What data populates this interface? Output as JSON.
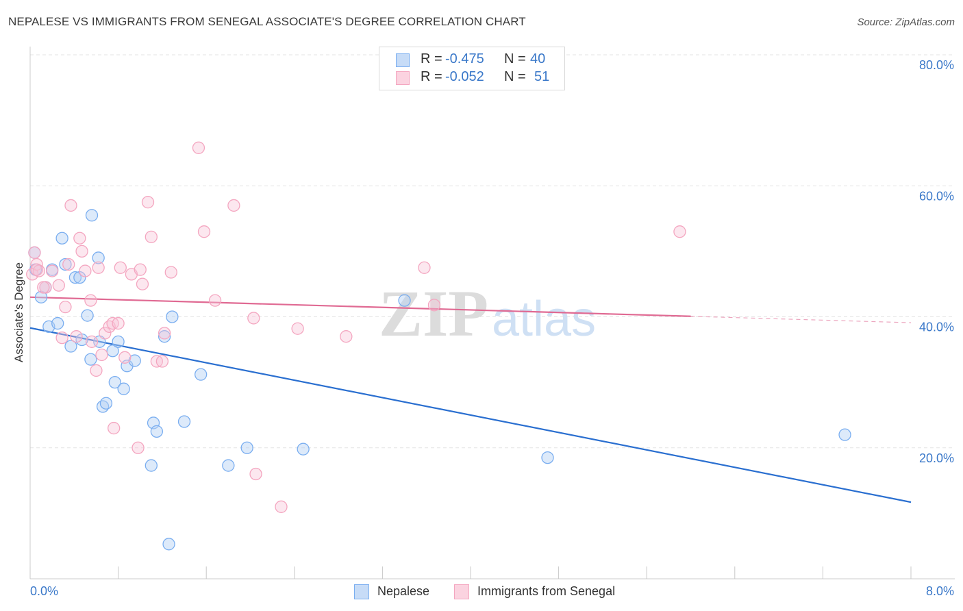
{
  "title": "NEPALESE VS IMMIGRANTS FROM SENEGAL ASSOCIATE'S DEGREE CORRELATION CHART",
  "source": "Source: ZipAtlas.com",
  "watermark": {
    "zip": "ZIP",
    "atlas": "atlas"
  },
  "legend": {
    "rows": [
      {
        "r_label": "R =",
        "r_value": "-0.475",
        "n_label": "N =",
        "n_value": "40",
        "color": "#7aaef0"
      },
      {
        "r_label": "R =",
        "r_value": "-0.052",
        "n_label": "N =",
        "n_value": "51",
        "color": "#f4a6c0"
      }
    ]
  },
  "chart_data": {
    "type": "scatter",
    "title": "NEPALESE VS IMMIGRANTS FROM SENEGAL ASSOCIATE'S DEGREE CORRELATION CHART",
    "xlabel": "",
    "ylabel": "Associate's Degree",
    "xlim": [
      0,
      8
    ],
    "ylim": [
      0,
      80
    ],
    "x_ticks": [
      "0.0%",
      "8.0%"
    ],
    "y_ticks": [
      "20.0%",
      "40.0%",
      "60.0%",
      "80.0%"
    ],
    "y_tick_values": [
      20,
      40,
      60,
      80
    ],
    "grid": true,
    "legend_position": "top-center",
    "series": [
      {
        "name": "Nepalese",
        "color": "#7aaef0",
        "line_color": "#2a6fd0",
        "trend": {
          "x": [
            0,
            8
          ],
          "y": [
            38.3,
            11.7
          ],
          "dashed_from": null
        },
        "points": [
          [
            0.04,
            49.8
          ],
          [
            0.05,
            47.2
          ],
          [
            0.1,
            43.0
          ],
          [
            0.14,
            44.5
          ],
          [
            0.17,
            38.5
          ],
          [
            0.2,
            47.2
          ],
          [
            0.25,
            39.0
          ],
          [
            0.29,
            52.0
          ],
          [
            0.32,
            48.0
          ],
          [
            0.37,
            35.5
          ],
          [
            0.41,
            46.0
          ],
          [
            0.45,
            46.0
          ],
          [
            0.47,
            36.5
          ],
          [
            0.52,
            40.2
          ],
          [
            0.55,
            33.5
          ],
          [
            0.56,
            55.5
          ],
          [
            0.62,
            49.0
          ],
          [
            0.63,
            36.2
          ],
          [
            0.66,
            26.3
          ],
          [
            0.69,
            26.8
          ],
          [
            0.75,
            34.8
          ],
          [
            0.77,
            30.0
          ],
          [
            0.8,
            36.2
          ],
          [
            0.85,
            29.0
          ],
          [
            0.88,
            32.5
          ],
          [
            0.95,
            33.3
          ],
          [
            1.1,
            17.3
          ],
          [
            1.12,
            23.8
          ],
          [
            1.15,
            22.5
          ],
          [
            1.22,
            37.0
          ],
          [
            1.26,
            5.3
          ],
          [
            1.29,
            40.0
          ],
          [
            1.4,
            24.0
          ],
          [
            1.55,
            31.2
          ],
          [
            1.8,
            17.3
          ],
          [
            1.97,
            20.0
          ],
          [
            2.48,
            19.8
          ],
          [
            3.4,
            42.5
          ],
          [
            4.7,
            18.5
          ],
          [
            7.4,
            22.0
          ]
        ]
      },
      {
        "name": "Immigrants from Senegal",
        "color": "#f4a6c0",
        "line_color": "#e06a93",
        "trend": {
          "x": [
            0,
            8
          ],
          "y": [
            43.0,
            39.1
          ],
          "dashed_from": 6.0
        },
        "points": [
          [
            0.02,
            46.5
          ],
          [
            0.04,
            49.8
          ],
          [
            0.06,
            48.0
          ],
          [
            0.14,
            44.5
          ],
          [
            0.2,
            47.0
          ],
          [
            0.26,
            44.8
          ],
          [
            0.29,
            36.8
          ],
          [
            0.32,
            41.5
          ],
          [
            0.35,
            48.0
          ],
          [
            0.37,
            57.0
          ],
          [
            0.42,
            37.0
          ],
          [
            0.45,
            52.0
          ],
          [
            0.47,
            50.0
          ],
          [
            0.5,
            47.0
          ],
          [
            0.55,
            42.5
          ],
          [
            0.56,
            36.2
          ],
          [
            0.6,
            31.8
          ],
          [
            0.62,
            47.5
          ],
          [
            0.65,
            34.2
          ],
          [
            0.68,
            37.5
          ],
          [
            0.72,
            38.5
          ],
          [
            0.75,
            39.0
          ],
          [
            0.76,
            23.0
          ],
          [
            0.8,
            39.0
          ],
          [
            0.82,
            47.5
          ],
          [
            0.86,
            33.8
          ],
          [
            0.92,
            46.5
          ],
          [
            0.98,
            20.0
          ],
          [
            1.0,
            47.2
          ],
          [
            1.02,
            45.0
          ],
          [
            1.07,
            57.5
          ],
          [
            1.1,
            52.2
          ],
          [
            1.15,
            33.2
          ],
          [
            1.2,
            33.2
          ],
          [
            1.22,
            37.5
          ],
          [
            1.28,
            46.8
          ],
          [
            1.53,
            65.8
          ],
          [
            1.58,
            53.0
          ],
          [
            1.68,
            42.5
          ],
          [
            1.85,
            57.0
          ],
          [
            2.03,
            39.8
          ],
          [
            2.05,
            16.0
          ],
          [
            2.28,
            11.0
          ],
          [
            2.43,
            38.2
          ],
          [
            2.87,
            37.0
          ],
          [
            3.58,
            47.5
          ],
          [
            3.67,
            41.8
          ],
          [
            5.9,
            53.0
          ],
          [
            0.08,
            47.0
          ],
          [
            0.12,
            44.5
          ],
          [
            0.06,
            47.2
          ]
        ]
      }
    ]
  }
}
